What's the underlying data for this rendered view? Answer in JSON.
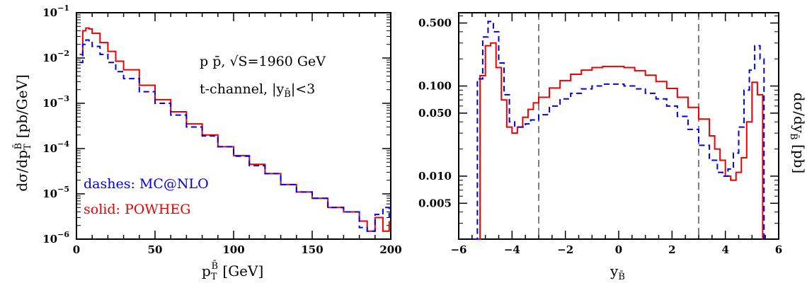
{
  "chart_data": [
    {
      "type": "line",
      "xlabel": "p_T^{B̄}  [GeV]",
      "ylabel": "dσ/dp_T^{B̄}  [pb/GeV]",
      "xlim": [
        0,
        200
      ],
      "ylim": [
        1e-06,
        0.1
      ],
      "yscale": "log",
      "grid": false,
      "x_ticks": [
        "0",
        "50",
        "100",
        "150",
        "200"
      ],
      "y_ticks": [
        "10^-6",
        "10^-5",
        "10^-4",
        "10^-3",
        "10^-2",
        "10^-1"
      ],
      "annotations": [
        "p p̄,  √S=1960 GeV",
        "t-channel,  |y_B̄|<3"
      ],
      "legend_position": "bottom-left",
      "legend": [
        {
          "text": "dashes: MC@NLO",
          "color": "#0000ee",
          "style": "dashed"
        },
        {
          "text": "solid: POWHEG",
          "color": "#ee0000",
          "style": "solid"
        }
      ],
      "series": [
        {
          "color": "#ee0000",
          "style": "solid",
          "x": [
            2,
            4,
            6,
            8,
            10,
            15,
            20,
            25,
            30,
            40,
            50,
            60,
            70,
            80,
            90,
            100,
            110,
            120,
            130,
            140,
            150,
            160,
            170,
            180,
            185,
            190,
            195,
            199
          ],
          "y": [
            0.012,
            0.04,
            0.046,
            0.044,
            0.035,
            0.022,
            0.014,
            0.0085,
            0.0055,
            0.0025,
            0.0012,
            0.00065,
            0.00035,
            0.0002,
            0.00011,
            7e-05,
            4.5e-05,
            2.8e-05,
            1.6e-05,
            1.1e-05,
            8e-06,
            5e-06,
            4e-06,
            2.5e-06,
            1.5e-06,
            3e-06,
            1.5e-06,
            2.5e-06
          ]
        },
        {
          "color": "#0000ee",
          "style": "dashed",
          "x": [
            2,
            4,
            6,
            8,
            10,
            15,
            20,
            25,
            30,
            40,
            50,
            60,
            70,
            80,
            90,
            100,
            110,
            120,
            130,
            140,
            150,
            160,
            170,
            180,
            185,
            190,
            195,
            199
          ],
          "y": [
            0.008,
            0.02,
            0.025,
            0.024,
            0.018,
            0.012,
            0.008,
            0.005,
            0.0035,
            0.0018,
            0.001,
            0.00055,
            0.0003,
            0.00019,
            0.00011,
            6.8e-05,
            4.2e-05,
            2.8e-05,
            1.6e-05,
            1.1e-05,
            8e-06,
            5e-06,
            4e-06,
            1.8e-06,
            1.5e-06,
            3.5e-06,
            5e-06,
            3e-06
          ]
        }
      ]
    },
    {
      "type": "line",
      "xlabel": "y_B̄",
      "ylabel": "dσ/dy_B̄ [pb]",
      "xlim": [
        -6,
        6
      ],
      "ylim": [
        0.002,
        0.65
      ],
      "yscale": "log",
      "grid": false,
      "x_ticks": [
        "−6",
        "−4",
        "−2",
        "0",
        "2",
        "4",
        "6"
      ],
      "y_ticks": [
        "0.005",
        "0.010",
        "0.050",
        "0.100",
        "0.500"
      ],
      "y_tick_values": [
        0.005,
        0.01,
        0.05,
        0.1,
        0.5
      ],
      "vertical_lines": [
        -3,
        3
      ],
      "series": [
        {
          "color": "#ee0000",
          "style": "solid",
          "x": [
            -5.45,
            -5.2,
            -5.0,
            -4.8,
            -4.6,
            -4.4,
            -4.2,
            -4.0,
            -3.8,
            -3.6,
            -3.4,
            -3.2,
            -3.0,
            -2.6,
            -2.2,
            -1.8,
            -1.4,
            -1.0,
            -0.6,
            -0.2,
            0.2,
            0.6,
            1.0,
            1.4,
            1.8,
            2.2,
            2.6,
            3.0,
            3.4,
            3.6,
            3.8,
            4.0,
            4.2,
            4.4,
            4.6,
            4.8,
            5.0,
            5.2,
            5.4
          ],
          "y": [
            0.002,
            0.13,
            0.28,
            0.3,
            0.16,
            0.07,
            0.035,
            0.03,
            0.035,
            0.045,
            0.055,
            0.065,
            0.075,
            0.095,
            0.115,
            0.135,
            0.15,
            0.16,
            0.165,
            0.165,
            0.16,
            0.148,
            0.132,
            0.112,
            0.094,
            0.075,
            0.058,
            0.043,
            0.028,
            0.02,
            0.015,
            0.01,
            0.009,
            0.011,
            0.016,
            0.04,
            0.11,
            0.08,
            0.002
          ]
        },
        {
          "color": "#0000ee",
          "style": "dashed",
          "x": [
            -5.45,
            -5.3,
            -5.1,
            -4.9,
            -4.7,
            -4.5,
            -4.3,
            -4.1,
            -3.9,
            -3.7,
            -3.5,
            -3.3,
            -3.0,
            -2.6,
            -2.2,
            -1.8,
            -1.4,
            -1.0,
            -0.6,
            -0.2,
            0.2,
            0.6,
            1.0,
            1.4,
            1.8,
            2.2,
            2.6,
            3.0,
            3.4,
            3.7,
            3.9,
            4.1,
            4.3,
            4.5,
            4.7,
            4.9,
            5.1,
            5.3,
            5.45
          ],
          "y": [
            0.002,
            0.12,
            0.35,
            0.52,
            0.4,
            0.18,
            0.08,
            0.04,
            0.035,
            0.035,
            0.038,
            0.042,
            0.048,
            0.06,
            0.072,
            0.083,
            0.093,
            0.1,
            0.105,
            0.105,
            0.1,
            0.093,
            0.083,
            0.072,
            0.06,
            0.046,
            0.033,
            0.022,
            0.015,
            0.011,
            0.01,
            0.012,
            0.018,
            0.035,
            0.09,
            0.15,
            0.28,
            0.2,
            0.002
          ]
        }
      ]
    }
  ]
}
